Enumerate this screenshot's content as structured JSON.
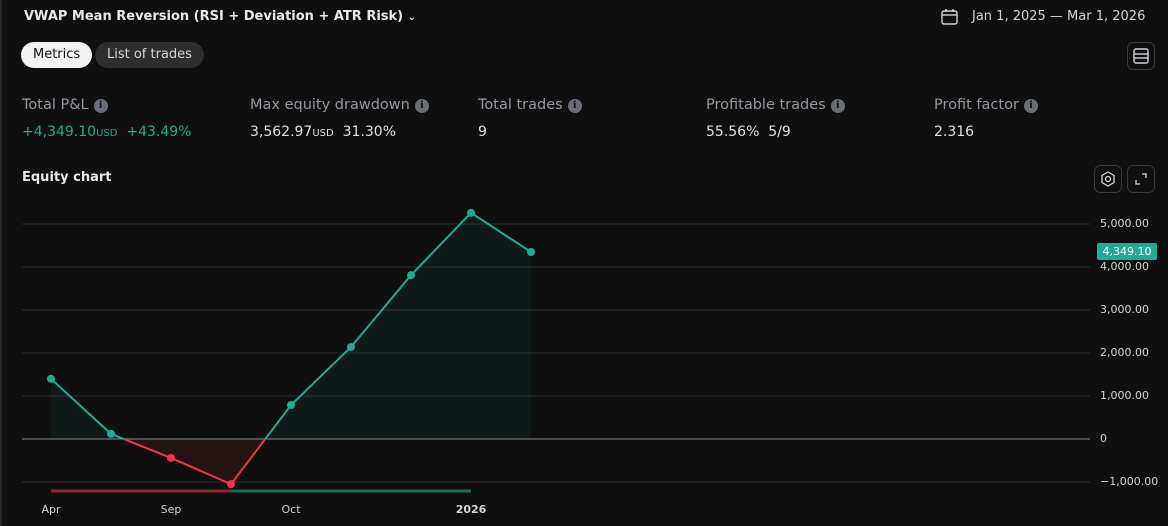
{
  "header": {
    "title": "VWAP Mean Reversion (RSI + Deviation + ATR Risk)",
    "date_range": "Jan 1, 2025 — Mar 1, 2026"
  },
  "tabs": [
    "Metrics",
    "List of trades"
  ],
  "metrics": [
    {
      "label": "Total P&L",
      "value": "+4,349.10",
      "unit": "USD",
      "extra": "+43.49%"
    },
    {
      "label": "Max equity drawdown",
      "value": "3,562.97",
      "unit": "USD",
      "extra": "31.30%"
    },
    {
      "label": "Total trades",
      "value": "9"
    },
    {
      "label": "Profitable trades",
      "value": "55.56%",
      "extra": "5/9"
    },
    {
      "label": "Profit factor",
      "value": "2.316"
    }
  ],
  "chart_data": {
    "type": "line",
    "title": "Equity chart",
    "categories": [
      "Apr",
      null,
      "Sep",
      null,
      "Oct",
      null,
      null,
      "2026",
      null
    ],
    "series": [
      {
        "color": "#22ab94",
        "negative_color": "#f23645",
        "values": [
          1400,
          120,
          -440,
          -1050,
          790,
          2140,
          3810,
          5260,
          4349.1
        ],
        "value_labels": [
          null,
          null,
          null,
          null,
          null,
          null,
          null,
          null,
          "4,349.10"
        ]
      }
    ],
    "ylim": [
      -1400,
      5600
    ],
    "yticks": [
      {
        "value": -1000,
        "label": "−1,000.00"
      },
      0,
      {
        "value": 1000,
        "label": "1,000.00"
      },
      {
        "value": 2000,
        "label": "2,000.00"
      },
      {
        "value": 3000,
        "label": "3,000.00"
      },
      {
        "value": 4000,
        "label": "4,000.00"
      },
      {
        "value": 5000,
        "label": "5,000.00"
      }
    ],
    "grid": true
  }
}
